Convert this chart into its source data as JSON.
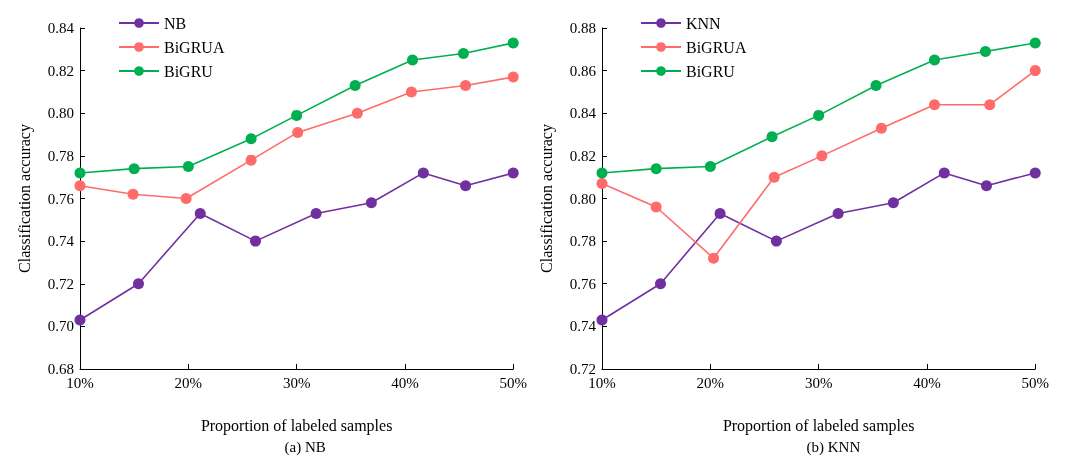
{
  "chart_data": [
    {
      "type": "line",
      "title": "(a) NB",
      "xlabel": "Proportion of labeled samples",
      "ylabel": "Classification accuracy",
      "xlim": [
        10,
        50
      ],
      "xticks": [
        {
          "value": 10,
          "label": "10%"
        },
        {
          "value": 20,
          "label": "20%"
        },
        {
          "value": 30,
          "label": "30%"
        },
        {
          "value": 40,
          "label": "40%"
        },
        {
          "value": 50,
          "label": "50%"
        }
      ],
      "ylim": [
        0.68,
        0.84
      ],
      "yticks": [
        {
          "value": 0.68,
          "label": "0.68"
        },
        {
          "value": 0.7,
          "label": "0.70"
        },
        {
          "value": 0.72,
          "label": "0.72"
        },
        {
          "value": 0.74,
          "label": "0.74"
        },
        {
          "value": 0.76,
          "label": "0.76"
        },
        {
          "value": 0.78,
          "label": "0.78"
        },
        {
          "value": 0.8,
          "label": "0.80"
        },
        {
          "value": 0.82,
          "label": "0.82"
        },
        {
          "value": 0.84,
          "label": "0.84"
        }
      ],
      "legend": "top left",
      "grid": false,
      "marker": "circle",
      "line_style": "solid",
      "series": [
        {
          "name": "NB",
          "color": "#7030a0",
          "x": [
            10,
            15.4,
            21.1,
            26.2,
            31.8,
            36.9,
            41.7,
            45.6,
            50
          ],
          "values": [
            0.703,
            0.72,
            0.753,
            0.74,
            0.753,
            0.758,
            0.772,
            0.766,
            0.772
          ]
        },
        {
          "name": "BiGRUA",
          "color": "#ff6b6b",
          "x": [
            10,
            14.9,
            19.8,
            25.8,
            30.1,
            35.6,
            40.6,
            45.6,
            50
          ],
          "values": [
            0.766,
            0.762,
            0.76,
            0.778,
            0.791,
            0.8,
            0.81,
            0.813,
            0.817
          ]
        },
        {
          "name": "BiGRU",
          "color": "#00b050",
          "x": [
            10,
            15,
            20,
            25.8,
            30,
            35.4,
            40.7,
            45.4,
            50
          ],
          "values": [
            0.772,
            0.774,
            0.775,
            0.788,
            0.799,
            0.813,
            0.825,
            0.828,
            0.833
          ]
        }
      ]
    },
    {
      "type": "line",
      "title": "(b) KNN",
      "xlabel": "Proportion of labeled samples",
      "ylabel": "Classification accuracy",
      "xlim": [
        10,
        50
      ],
      "xticks": [
        {
          "value": 10,
          "label": "10%"
        },
        {
          "value": 20,
          "label": "20%"
        },
        {
          "value": 30,
          "label": "30%"
        },
        {
          "value": 40,
          "label": "40%"
        },
        {
          "value": 50,
          "label": "50%"
        }
      ],
      "ylim": [
        0.72,
        0.88
      ],
      "yticks": [
        {
          "value": 0.72,
          "label": "0.72"
        },
        {
          "value": 0.74,
          "label": "0.74"
        },
        {
          "value": 0.76,
          "label": "0.76"
        },
        {
          "value": 0.78,
          "label": "0.78"
        },
        {
          "value": 0.8,
          "label": "0.80"
        },
        {
          "value": 0.82,
          "label": "0.82"
        },
        {
          "value": 0.84,
          "label": "0.84"
        },
        {
          "value": 0.86,
          "label": "0.86"
        },
        {
          "value": 0.88,
          "label": "0.88"
        }
      ],
      "legend": "top left",
      "grid": false,
      "marker": "circle",
      "line_style": "solid",
      "series": [
        {
          "name": "KNN",
          "color": "#7030a0",
          "x": [
            10,
            15.4,
            20.9,
            26.1,
            31.8,
            36.9,
            41.6,
            45.5,
            50
          ],
          "values": [
            0.743,
            0.76,
            0.793,
            0.78,
            0.793,
            0.798,
            0.812,
            0.806,
            0.812
          ]
        },
        {
          "name": "BiGRUA",
          "color": "#ff6b6b",
          "x": [
            10,
            15,
            20.3,
            25.9,
            30.3,
            35.8,
            40.7,
            45.8,
            50
          ],
          "values": [
            0.807,
            0.796,
            0.772,
            0.81,
            0.82,
            0.833,
            0.844,
            0.844,
            0.86
          ]
        },
        {
          "name": "BiGRU",
          "color": "#00b050",
          "x": [
            10,
            15,
            20,
            25.7,
            30,
            35.3,
            40.7,
            45.4,
            50
          ],
          "values": [
            0.812,
            0.814,
            0.815,
            0.829,
            0.839,
            0.853,
            0.865,
            0.869,
            0.873
          ]
        }
      ]
    }
  ]
}
